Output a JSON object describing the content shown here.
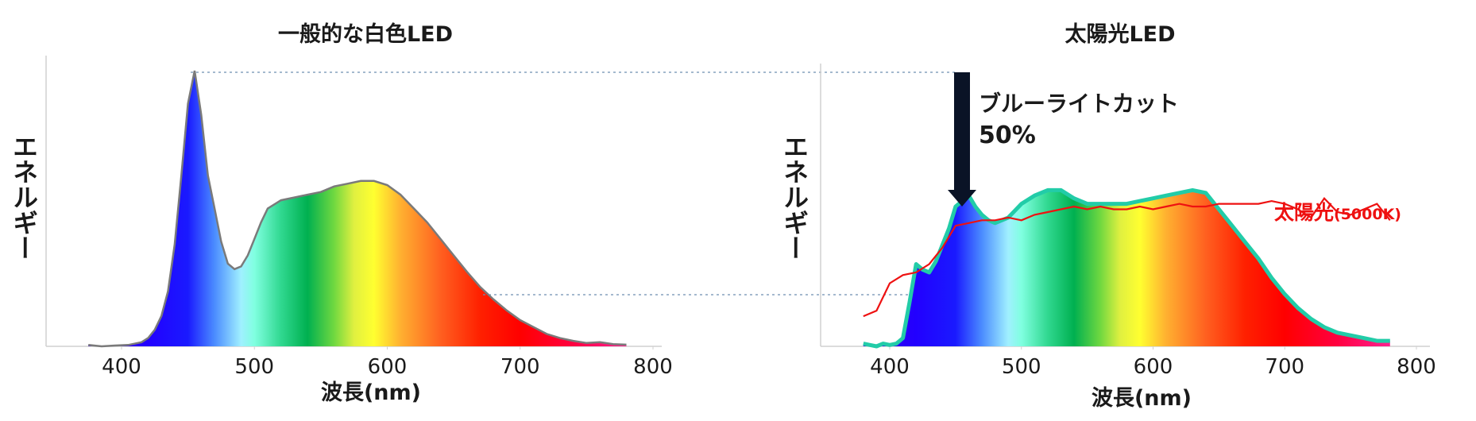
{
  "chart_data": [
    {
      "type": "area",
      "title": "一般的な白色LED",
      "xlabel": "波長(nm)",
      "ylabel": "エネルギー",
      "xlim": [
        340,
        800
      ],
      "ylim": [
        0,
        100
      ],
      "xticks": [
        400,
        500,
        600,
        700,
        800
      ],
      "grid": false,
      "fill": "visible-spectrum gradient",
      "series": [
        {
          "x": [
            375,
            385,
            395,
            405,
            415,
            420,
            425,
            430,
            435,
            440,
            445,
            450,
            455,
            460,
            465,
            470,
            475,
            480,
            485,
            490,
            495,
            500,
            505,
            510,
            520,
            530,
            540,
            550,
            560,
            570,
            580,
            590,
            600,
            610,
            620,
            630,
            640,
            650,
            660,
            670,
            680,
            690,
            700,
            710,
            720,
            730,
            740,
            750,
            760,
            770,
            780
          ],
          "values": [
            0.5,
            0,
            0.3,
            0.5,
            1.5,
            3,
            6,
            11,
            20,
            37,
            62,
            88,
            100,
            84,
            62,
            50,
            38,
            30,
            28,
            29,
            33,
            39,
            45,
            50,
            53,
            54,
            55,
            56,
            58,
            59,
            60,
            60,
            58.5,
            55,
            50,
            45,
            39,
            33,
            27,
            21.5,
            17,
            13,
            9.5,
            7,
            4.5,
            3,
            2,
            1.2,
            1.5,
            0.8,
            0.6
          ]
        }
      ]
    },
    {
      "type": "area",
      "title": "太陽光LED",
      "xlabel": "波長(nm)",
      "ylabel": "エネルギー",
      "xlim": [
        350,
        800
      ],
      "ylim": [
        0,
        100
      ],
      "xticks": [
        400,
        500,
        600,
        700,
        800
      ],
      "grid": false,
      "fill": "visible-spectrum gradient",
      "series": [
        {
          "x": [
            380,
            385,
            390,
            395,
            400,
            405,
            410,
            415,
            420,
            425,
            430,
            435,
            440,
            445,
            450,
            455,
            460,
            465,
            470,
            475,
            480,
            490,
            500,
            510,
            520,
            530,
            540,
            550,
            560,
            570,
            580,
            590,
            600,
            610,
            620,
            630,
            640,
            650,
            660,
            670,
            680,
            690,
            700,
            710,
            720,
            730,
            740,
            750,
            760,
            770,
            780
          ],
          "values": [
            1,
            0.5,
            0,
            1,
            0.5,
            1,
            3,
            16,
            30,
            28,
            27,
            31,
            37,
            43,
            51,
            53,
            55,
            51,
            48,
            46,
            45,
            47,
            52,
            55,
            57,
            57,
            54,
            52,
            52,
            52,
            52,
            53,
            54,
            55,
            56,
            57,
            56,
            50,
            44,
            38,
            32,
            25,
            19,
            14,
            10,
            7,
            5,
            4,
            3,
            2,
            2
          ]
        },
        {
          "name": "太陽光(5000K)",
          "x": [
            380,
            390,
            400,
            410,
            420,
            430,
            440,
            450,
            460,
            470,
            480,
            490,
            500,
            510,
            520,
            530,
            540,
            550,
            560,
            570,
            580,
            590,
            600,
            610,
            620,
            630,
            640,
            650,
            660,
            670,
            680,
            690,
            700,
            710,
            720,
            730,
            740,
            750,
            760,
            770,
            780
          ],
          "values": [
            11,
            13,
            23,
            26,
            27,
            30,
            36,
            44,
            45,
            46,
            46,
            47,
            46,
            48,
            49,
            50,
            51,
            50,
            51,
            50,
            50,
            51,
            50,
            51,
            52,
            51,
            51,
            52,
            52,
            52,
            52,
            53,
            52,
            50,
            47,
            54,
            49,
            48,
            50,
            52,
            46
          ]
        }
      ],
      "annotations": {
        "arrow_label": "ブルーライトカット",
        "arrow_percent": "50%",
        "sunlight_label": "太陽光",
        "sunlight_sub": "(5000K)"
      }
    }
  ],
  "colors": {
    "text": "#1a1a1a",
    "left_outline": "#7a7a7a",
    "right_outline": "#22cca8",
    "sunlight_line": "#ee1111",
    "arrow": "#0a1326",
    "guide_line": "#6d8fb0"
  }
}
